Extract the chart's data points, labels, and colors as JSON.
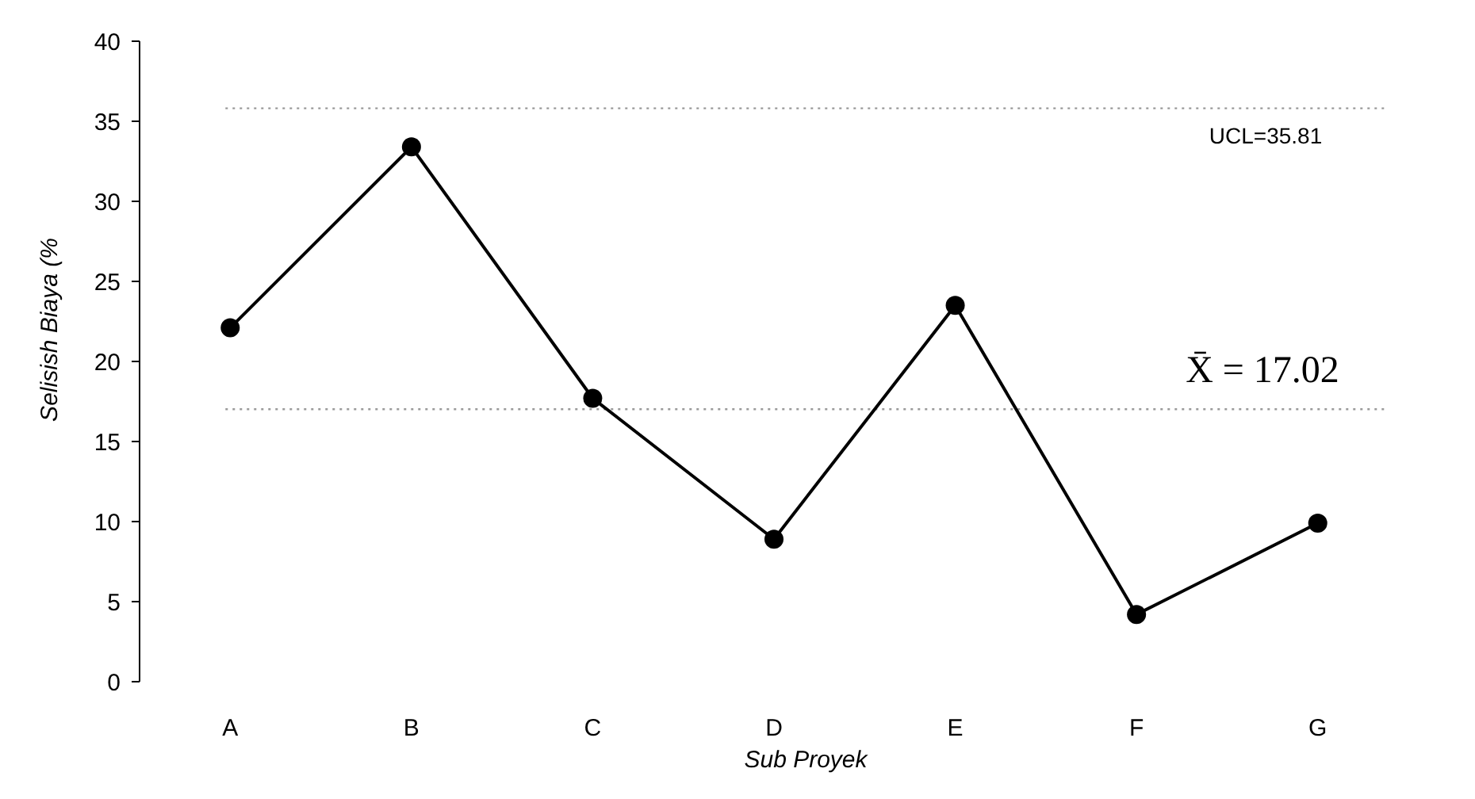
{
  "chart_data": {
    "type": "line",
    "xlabel": "Sub Proyek",
    "ylabel": "Selisish Biaya (%",
    "categories": [
      "A",
      "B",
      "C",
      "D",
      "E",
      "F",
      "G"
    ],
    "series": [
      {
        "color": "#000000",
        "values": [
          22.1,
          33.4,
          17.7,
          8.9,
          23.5,
          4.2,
          9.9
        ]
      }
    ],
    "ylim": [
      0,
      40
    ],
    "yticks": [
      0,
      5,
      10,
      15,
      20,
      25,
      30,
      35,
      40
    ],
    "marker": "circle",
    "line_style": "solid",
    "ref_lines": [
      {
        "axis": "y",
        "value": 35.81,
        "label": "UCL=35.81",
        "color": "#999999",
        "line_style": "dotted"
      },
      {
        "axis": "y",
        "value": 17.02,
        "label": "X̄ = 17.02",
        "color": "#999999",
        "line_style": "dotted"
      }
    ]
  }
}
